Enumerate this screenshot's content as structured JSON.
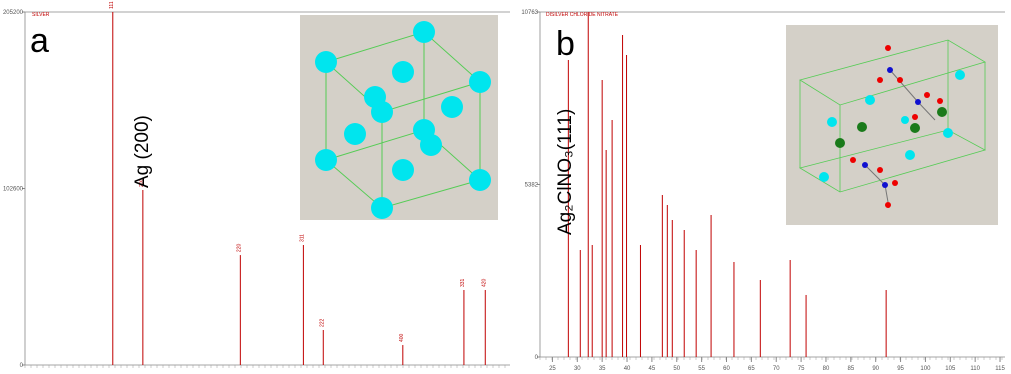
{
  "chart_data": [
    {
      "type": "stem",
      "panel_label": "a",
      "legend": "SILVER",
      "annotation": "Ag (200)",
      "color": "#c00000",
      "x": [
        38.1,
        44.3,
        64.4,
        77.4,
        81.5,
        97.9,
        110.5,
        114.9
      ],
      "values": [
        205200,
        101700,
        63900,
        69750,
        20350,
        11600,
        43600,
        43600
      ],
      "peak_labels": [
        "111",
        "200",
        "220",
        "311",
        "222",
        "400",
        "331",
        "420"
      ],
      "xlim": [
        20,
        120
      ],
      "ylim": [
        0,
        205200
      ],
      "yticks": [
        0,
        102600,
        205200
      ]
    },
    {
      "type": "stem",
      "panel_label": "b",
      "legend": "DISILVER CHLORIDE NITRATE",
      "annotation": "Ag₂ClNO₃(111)",
      "color": "#c00000",
      "x": [
        28.2,
        30.6,
        32.2,
        33.0,
        35.0,
        35.8,
        37.0,
        39.1,
        39.9,
        42.7,
        47.1,
        48.1,
        49.1,
        51.5,
        53.9,
        56.9,
        61.5,
        66.8,
        72.8,
        76.0,
        92.1
      ],
      "values": [
        9265,
        3338,
        10763,
        3494,
        8642,
        6458,
        7394,
        10045,
        9421,
        3494,
        5054,
        4742,
        4274,
        3962,
        3338,
        4430,
        2964,
        2402,
        3026,
        1935,
        2090
      ],
      "xlim": [
        22.5,
        116
      ],
      "ylim": [
        0,
        10763
      ],
      "yticks": [
        0,
        5382,
        10763
      ],
      "xticks": [
        25,
        30,
        35,
        40,
        45,
        50,
        55,
        60,
        65,
        70,
        75,
        80,
        85,
        90,
        95,
        100,
        105,
        110,
        115
      ]
    }
  ]
}
